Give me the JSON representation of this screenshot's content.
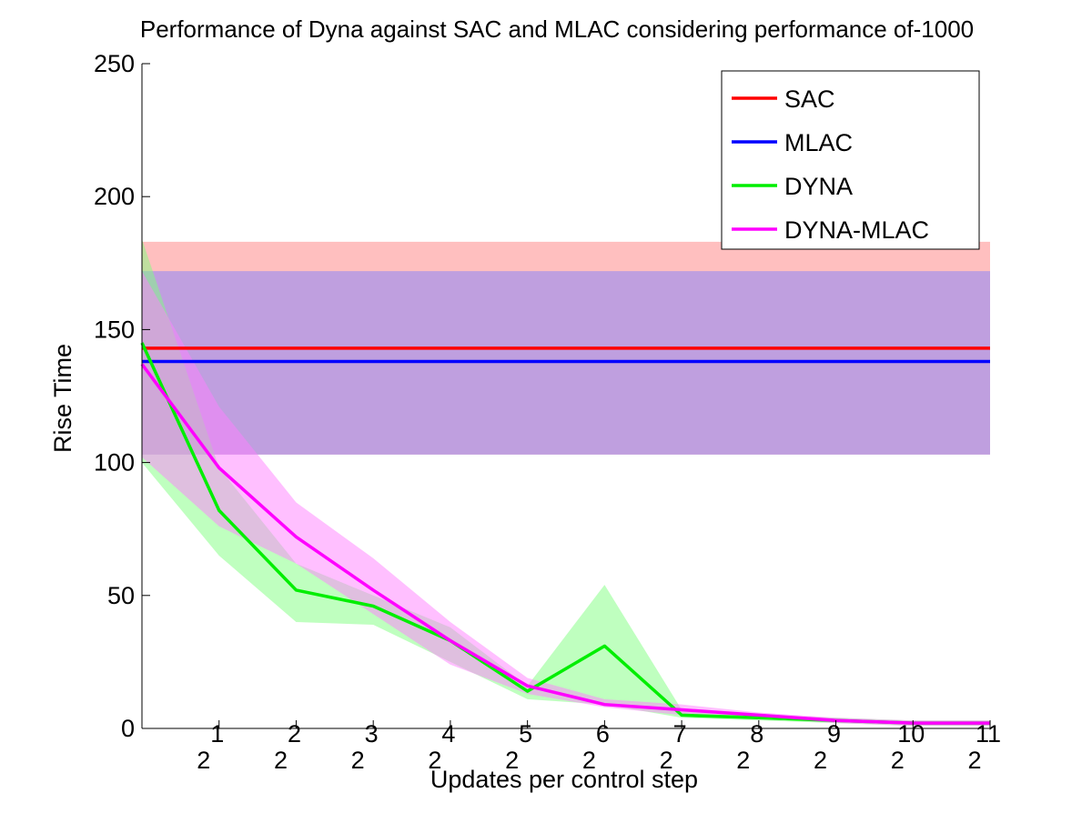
{
  "chart_data": {
    "type": "line",
    "title": "Performance of Dyna against SAC and MLAC considering performance of-1000",
    "xlabel": "Updates per control step",
    "ylabel": "Rise Time",
    "xlim": [
      0,
      11
    ],
    "ylim": [
      0,
      250
    ],
    "yticks": [
      0,
      50,
      100,
      150,
      200,
      250
    ],
    "ytick_labels": [
      "0",
      "50",
      "100",
      "150",
      "200",
      "250"
    ],
    "xticks": [
      1,
      2,
      3,
      4,
      5,
      6,
      7,
      8,
      9,
      10,
      11
    ],
    "xtick_base": "2",
    "xtick_exponents": [
      "1",
      "2",
      "3",
      "4",
      "5",
      "6",
      "7",
      "8",
      "9",
      "10",
      "11"
    ],
    "x": [
      0,
      1,
      2,
      3,
      4,
      5,
      6,
      7,
      8,
      9,
      10,
      11
    ],
    "series": [
      {
        "name": "SAC",
        "color": "#ff0000",
        "values": [
          143,
          143,
          143,
          143,
          143,
          143,
          143,
          143,
          143,
          143,
          143,
          143
        ],
        "band_lower": [
          103,
          103,
          103,
          103,
          103,
          103,
          103,
          103,
          103,
          103,
          103,
          103
        ],
        "band_upper": [
          183,
          183,
          183,
          183,
          183,
          183,
          183,
          183,
          183,
          183,
          183,
          183
        ],
        "band_color": "#ff8080"
      },
      {
        "name": "MLAC",
        "color": "#0000ff",
        "values": [
          138,
          138,
          138,
          138,
          138,
          138,
          138,
          138,
          138,
          138,
          138,
          138
        ],
        "band_lower": [
          103,
          103,
          103,
          103,
          103,
          103,
          103,
          103,
          103,
          103,
          103,
          103
        ],
        "band_upper": [
          172,
          172,
          172,
          172,
          172,
          172,
          172,
          172,
          172,
          172,
          172,
          172
        ],
        "band_color": "#7f7fff"
      },
      {
        "name": "DYNA",
        "color": "#00ee00",
        "values": [
          145,
          82,
          52,
          46,
          33,
          14,
          31,
          5,
          4,
          3,
          2,
          2
        ],
        "band_lower": [
          100,
          65,
          40,
          39,
          25,
          11,
          9,
          4,
          3,
          2,
          1,
          1
        ],
        "band_upper": [
          184,
          98,
          62,
          50,
          38,
          16,
          54,
          7,
          5,
          4,
          3,
          3
        ],
        "band_color": "#80ff80"
      },
      {
        "name": "DYNA-MLAC",
        "color": "#ff00ff",
        "values": [
          137,
          98,
          72,
          52,
          33,
          16,
          9,
          7,
          5,
          3,
          2,
          2
        ],
        "band_lower": [
          102,
          76,
          62,
          43,
          24,
          13,
          8,
          5,
          4,
          2,
          1,
          1
        ],
        "band_upper": [
          172,
          121,
          85,
          64,
          40,
          19,
          11,
          9,
          6,
          4,
          3,
          3
        ],
        "band_color": "#ff80ff"
      }
    ],
    "legend": [
      "SAC",
      "MLAC",
      "DYNA",
      "DYNA-MLAC"
    ],
    "legend_position": "top-right",
    "grid": false
  }
}
